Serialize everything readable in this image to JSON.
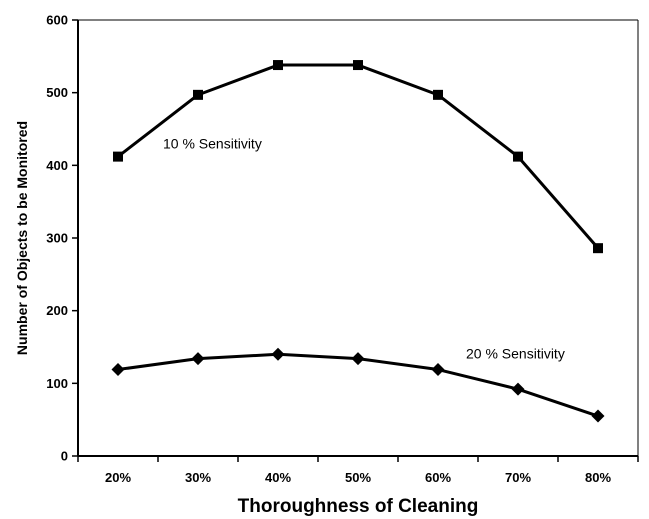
{
  "chart_data": {
    "type": "line",
    "title": "",
    "xlabel": "Thoroughness of Cleaning",
    "ylabel": "Number of Objects to be Monitored",
    "categories": [
      "20%",
      "30%",
      "40%",
      "50%",
      "60%",
      "70%",
      "80%"
    ],
    "ylim": [
      0,
      600
    ],
    "yticks": [
      "0",
      "100",
      "200",
      "300",
      "400",
      "500",
      "600"
    ],
    "grid": false,
    "legend": "none",
    "series": [
      {
        "name": "10 % Sensitivity",
        "marker": "square",
        "color": "#000000",
        "values": [
          412,
          497,
          538,
          538,
          497,
          412,
          286
        ]
      },
      {
        "name": "20 % Sensitivity",
        "marker": "diamond",
        "color": "#000000",
        "values": [
          119,
          134,
          140,
          134,
          119,
          92,
          55
        ]
      }
    ]
  }
}
